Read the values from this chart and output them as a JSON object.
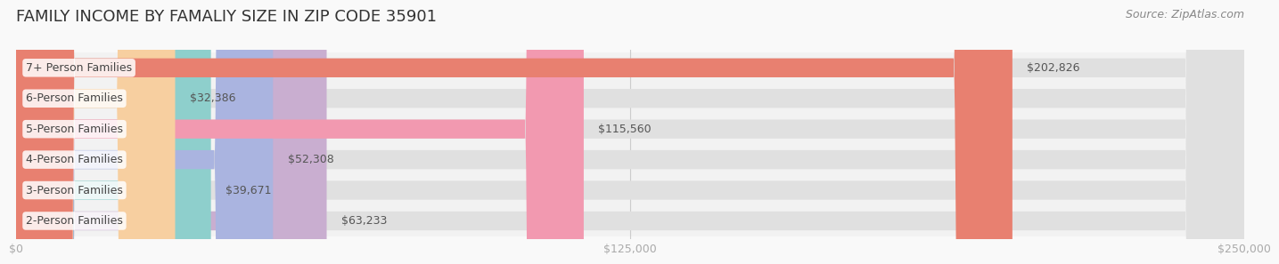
{
  "title": "FAMILY INCOME BY FAMALIY SIZE IN ZIP CODE 35901",
  "source": "Source: ZipAtlas.com",
  "categories": [
    "2-Person Families",
    "3-Person Families",
    "4-Person Families",
    "5-Person Families",
    "6-Person Families",
    "7+ Person Families"
  ],
  "values": [
    63233,
    39671,
    52308,
    115560,
    32386,
    202826
  ],
  "bar_colors": [
    "#c9aed0",
    "#8ecfcc",
    "#aab4e0",
    "#f299b0",
    "#f7cfa0",
    "#e88070"
  ],
  "bar_bg_color": "#eeeeee",
  "value_labels": [
    "$63,233",
    "$39,671",
    "$52,308",
    "$115,560",
    "$32,386",
    "$202,826"
  ],
  "xlim": [
    0,
    250000
  ],
  "xticks": [
    0,
    125000,
    250000
  ],
  "xtick_labels": [
    "$0",
    "$125,000",
    "$250,000"
  ],
  "title_fontsize": 13,
  "label_fontsize": 9,
  "value_fontsize": 9,
  "source_fontsize": 9,
  "bg_color": "#f9f9f9",
  "row_bg_colors": [
    "#f5f5f5",
    "#f0f0f0"
  ],
  "bar_height": 0.62,
  "figure_width": 14.06,
  "figure_height": 3.05
}
